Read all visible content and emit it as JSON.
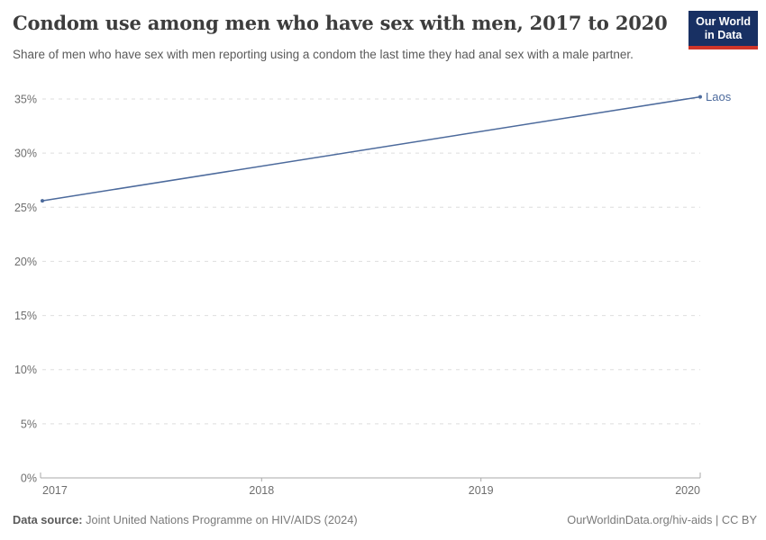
{
  "header": {
    "title": "Condom use among men who have sex with men, 2017 to 2020",
    "subtitle": "Share of men who have sex with men reporting using a condom the last time they had anal sex with a male partner.",
    "logo": {
      "line1": "Our World",
      "line2": "in Data",
      "bg_color": "#183063",
      "accent_color": "#cf3529"
    }
  },
  "chart_data": {
    "type": "line",
    "title": "Condom use among men who have sex with men, 2017 to 2020",
    "xlabel": "",
    "ylabel": "",
    "xlim": [
      2017,
      2020
    ],
    "ylim": [
      0,
      35
    ],
    "x_ticks": [
      "2017",
      "2018",
      "2019",
      "2020"
    ],
    "y_ticks": [
      0,
      5,
      10,
      15,
      20,
      25,
      30,
      35
    ],
    "y_tick_suffix": "%",
    "grid": "horizontal-dashed",
    "legend_position": "line-end-label",
    "series": [
      {
        "name": "Laos",
        "color": "#4C6A9C",
        "points": [
          [
            2017,
            25.6
          ],
          [
            2020,
            35.2
          ]
        ]
      }
    ]
  },
  "footer": {
    "source_label": "Data source:",
    "source_text": " Joint United Nations Programme on HIV/AIDS (2024)",
    "credit": "OurWorldinData.org/hiv-aids | CC BY"
  }
}
